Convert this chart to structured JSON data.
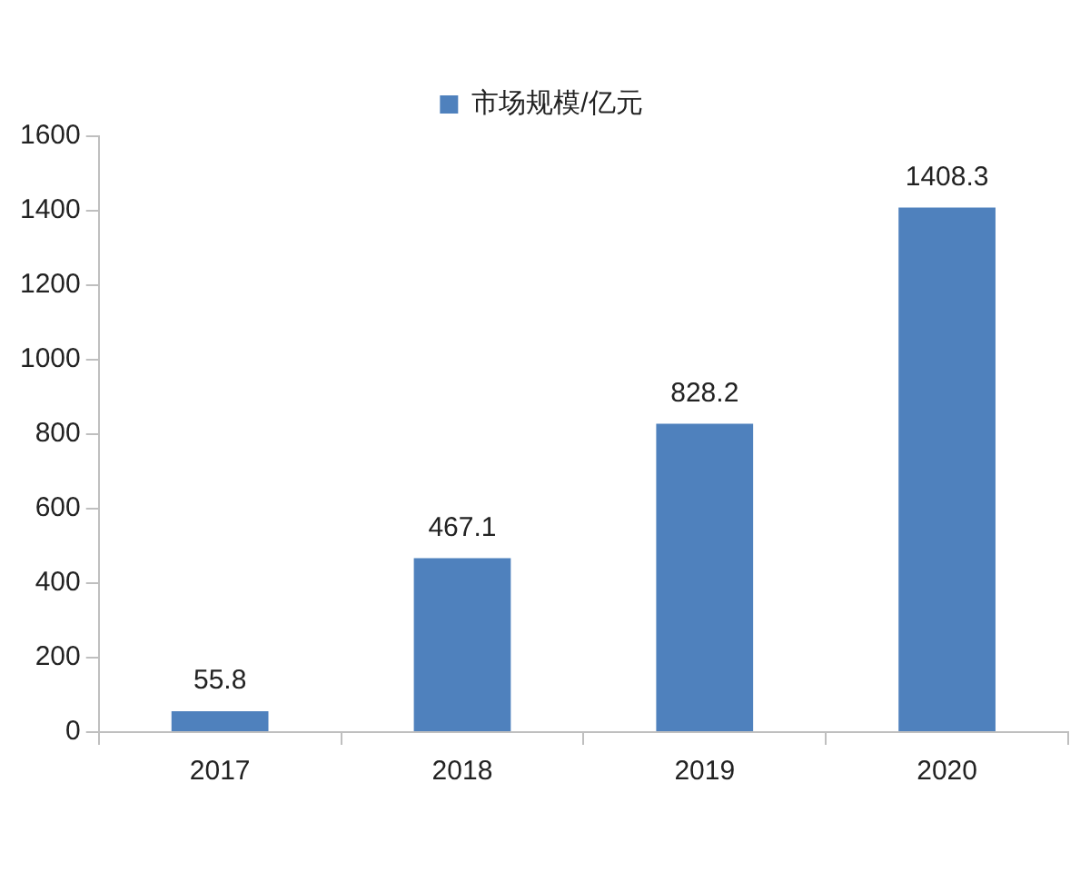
{
  "chart_data": {
    "type": "bar",
    "categories": [
      "2017",
      "2018",
      "2019",
      "2020"
    ],
    "series": [
      {
        "name": "市场规模/亿元",
        "color": "#4f81bd",
        "values": [
          55.8,
          467.1,
          828.2,
          1408.3
        ]
      }
    ],
    "ylim": [
      0,
      1600
    ],
    "yticks": [
      0,
      200,
      400,
      600,
      800,
      1000,
      1200,
      1400,
      1600
    ],
    "legend": "top",
    "data_labels": true
  }
}
